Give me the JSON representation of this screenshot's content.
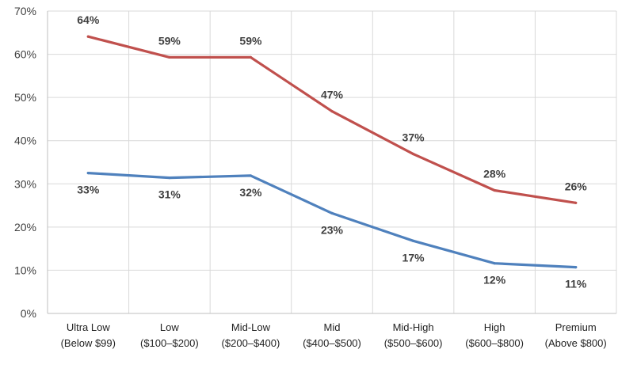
{
  "chart_data": {
    "type": "line",
    "title": "",
    "xlabel": "",
    "ylabel": "",
    "ylim": [
      0,
      70
    ],
    "yticks": [
      "0%",
      "10%",
      "20%",
      "30%",
      "40%",
      "50%",
      "60%",
      "70%"
    ],
    "grid": true,
    "legend": "none",
    "categories": [
      [
        "Ultra Low",
        "(Below $99)"
      ],
      [
        "Low",
        "($100–$200)"
      ],
      [
        "Mid-Low",
        "($200–$400)"
      ],
      [
        "Mid",
        "($400–$500)"
      ],
      [
        "Mid-High",
        "($500–$600)"
      ],
      [
        "High",
        "($600–$800)"
      ],
      [
        "Premium",
        "(Above $800)"
      ]
    ],
    "series": [
      {
        "color": "#c0504d",
        "values": [
          64.1,
          59.3,
          59.3,
          46.8,
          36.9,
          28.5,
          25.6
        ],
        "labels": [
          "64%",
          "59%",
          "59%",
          "47%",
          "37%",
          "28%",
          "26%"
        ],
        "label_position": "above"
      },
      {
        "color": "#4f81bd",
        "values": [
          32.5,
          31.4,
          31.9,
          23.2,
          16.8,
          11.6,
          10.7
        ],
        "labels": [
          "33%",
          "31%",
          "32%",
          "23%",
          "17%",
          "12%",
          "11%"
        ],
        "label_position": "below"
      }
    ]
  }
}
